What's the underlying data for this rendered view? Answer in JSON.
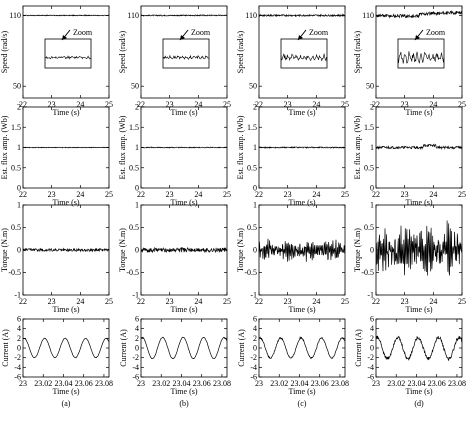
{
  "chart_data": {
    "type": "line",
    "panels": [
      {
        "id": "speed-a",
        "row": "speed",
        "col": "a",
        "ylabel": "Speed (rad/s)",
        "xlabel": "Time (s)",
        "xticks": [
          "22",
          "23",
          "24",
          "25"
        ],
        "yticks": [
          "110",
          "50"
        ],
        "xlim": [
          22,
          25
        ],
        "ylim": [
          40,
          118
        ],
        "level": 110,
        "noise": 0.35,
        "inset": {
          "label": "Zoom",
          "amp": 0.5,
          "noise": 1.0
        }
      },
      {
        "id": "speed-b",
        "row": "speed",
        "col": "b",
        "ylabel": "Speed (rad/s)",
        "xlabel": "Time (s)",
        "xticks": [
          "22",
          "23",
          "24",
          "25"
        ],
        "yticks": [
          "110",
          "50"
        ],
        "xlim": [
          22,
          25
        ],
        "ylim": [
          40,
          118
        ],
        "level": 110,
        "noise": 0.45,
        "inset": {
          "label": "Zoom",
          "amp": 0.7,
          "noise": 1.2
        }
      },
      {
        "id": "speed-c",
        "row": "speed",
        "col": "c",
        "ylabel": "Speed (rad/s)",
        "xlabel": "Time (s)",
        "xticks": [
          "22",
          "23",
          "24",
          "25"
        ],
        "yticks": [
          "110",
          "50"
        ],
        "xlim": [
          22,
          25
        ],
        "ylim": [
          40,
          118
        ],
        "level": 110,
        "noise": 0.7,
        "inset": {
          "label": "Zoom",
          "amp": 1.6,
          "noise": 2.2
        }
      },
      {
        "id": "speed-d",
        "row": "speed",
        "col": "d",
        "ylabel": "Speed (rad/s)",
        "xlabel": "Time (s)",
        "xticks": [
          "22",
          "23",
          "24",
          "25"
        ],
        "yticks": [
          "110",
          "50"
        ],
        "xlim": [
          22,
          25
        ],
        "ylim": [
          40,
          118
        ],
        "level": 110,
        "noise": 1.4,
        "inset": {
          "label": "Zoom",
          "amp": 2.8,
          "noise": 3.5
        }
      },
      {
        "id": "flux-a",
        "row": "flux",
        "col": "a",
        "ylabel": "Est. flux amp. (Wb)",
        "xlabel": "Time (s)",
        "xticks": [
          "22",
          "23",
          "24",
          "25"
        ],
        "yticks": [
          "0",
          "0.5",
          "1",
          "1.5",
          "2"
        ],
        "xlim": [
          22,
          25
        ],
        "ylim": [
          0,
          2
        ],
        "level": 1,
        "noise": 0.008
      },
      {
        "id": "flux-b",
        "row": "flux",
        "col": "b",
        "ylabel": "Est. flux amp. (Wb)",
        "xlabel": "Time (s)",
        "xticks": [
          "22",
          "23",
          "24",
          "25"
        ],
        "yticks": [
          "0",
          "0.5",
          "1",
          "1.5",
          "2"
        ],
        "xlim": [
          22,
          25
        ],
        "ylim": [
          0,
          2
        ],
        "level": 1,
        "noise": 0.01
      },
      {
        "id": "flux-c",
        "row": "flux",
        "col": "c",
        "ylabel": "Est. flux amp. (Wb)",
        "xlabel": "Time (s)",
        "xticks": [
          "22",
          "23",
          "24",
          "25"
        ],
        "yticks": [
          "0",
          "0.5",
          "1",
          "1.5",
          "2"
        ],
        "xlim": [
          22,
          25
        ],
        "ylim": [
          0,
          2
        ],
        "level": 1,
        "noise": 0.014
      },
      {
        "id": "flux-d",
        "row": "flux",
        "col": "d",
        "ylabel": "Est. flux amp. (Wb)",
        "xlabel": "Time (s)",
        "xticks": [
          "22",
          "23",
          "24",
          "25"
        ],
        "yticks": [
          "0",
          "0.5",
          "1",
          "1.5",
          "2"
        ],
        "xlim": [
          22,
          25
        ],
        "ylim": [
          0,
          2
        ],
        "level": 1,
        "noise": 0.03
      },
      {
        "id": "torque-a",
        "row": "torque",
        "col": "a",
        "ylabel": "Torque (N.m)",
        "xlabel": "Time (s)",
        "xticks": [
          "22",
          "23",
          "24",
          "25"
        ],
        "yticks": [
          "-1",
          "-0.5",
          "0",
          "0.5",
          "1"
        ],
        "xlim": [
          22,
          25
        ],
        "ylim": [
          -1,
          1
        ],
        "level": 0,
        "noise": 0.03
      },
      {
        "id": "torque-b",
        "row": "torque",
        "col": "b",
        "ylabel": "Torque (N.m)",
        "xlabel": "Time (s)",
        "xticks": [
          "22",
          "23",
          "24",
          "25"
        ],
        "yticks": [
          "-1",
          "-0.5",
          "0",
          "0.5",
          "1"
        ],
        "xlim": [
          22,
          25
        ],
        "ylim": [
          -1,
          1
        ],
        "level": 0,
        "noise": 0.05
      },
      {
        "id": "torque-c",
        "row": "torque",
        "col": "c",
        "ylabel": "Torque (N.m)",
        "xlabel": "Time (s)",
        "xticks": [
          "22",
          "23",
          "24",
          "25"
        ],
        "yticks": [
          "-1",
          "-0.5",
          "0",
          "0.5",
          "1"
        ],
        "xlim": [
          22,
          25
        ],
        "ylim": [
          -1,
          1
        ],
        "level": 0,
        "noise": 0.12
      },
      {
        "id": "torque-d",
        "row": "torque",
        "col": "d",
        "ylabel": "Torque (N.m)",
        "xlabel": "Time (s)",
        "xticks": [
          "22",
          "23",
          "24",
          "25"
        ],
        "yticks": [
          "-1",
          "-0.5",
          "0",
          "0.5",
          "1"
        ],
        "xlim": [
          22,
          25
        ],
        "ylim": [
          -1,
          1
        ],
        "level": 0,
        "noise": 0.28
      },
      {
        "id": "current-a",
        "row": "current",
        "col": "a",
        "ylabel": "Current (A)",
        "xlabel": "Time (s)",
        "xticks": [
          "23",
          "23.02",
          "23.04",
          "23.06",
          "23.08"
        ],
        "yticks": [
          "-6",
          "-4",
          "-2",
          "0",
          "2",
          "4",
          "6"
        ],
        "xlim": [
          23,
          23.085
        ],
        "ylim": [
          -6,
          6
        ],
        "level": 0,
        "amplitude": 2,
        "cycles": 4.2,
        "noise": 0.05
      },
      {
        "id": "current-b",
        "row": "current",
        "col": "b",
        "ylabel": "Current (A)",
        "xlabel": "Time (s)",
        "xticks": [
          "23",
          "23.02",
          "23.04",
          "23.06",
          "23.08"
        ],
        "yticks": [
          "-6",
          "-4",
          "-2",
          "0",
          "2",
          "4",
          "6"
        ],
        "xlim": [
          23,
          23.085
        ],
        "ylim": [
          -6,
          6
        ],
        "level": 0,
        "amplitude": 2.2,
        "cycles": 4.2,
        "noise": 0.07
      },
      {
        "id": "current-c",
        "row": "current",
        "col": "c",
        "ylabel": "Current (A)",
        "xlabel": "Time (s)",
        "xticks": [
          "23",
          "23.02",
          "23.04",
          "23.06",
          "23.08"
        ],
        "yticks": [
          "-6",
          "-4",
          "-2",
          "0",
          "2",
          "4",
          "6"
        ],
        "xlim": [
          23,
          23.085
        ],
        "ylim": [
          -6,
          6
        ],
        "level": 0,
        "amplitude": 2.1,
        "cycles": 4.2,
        "noise": 0.15
      },
      {
        "id": "current-d",
        "row": "current",
        "col": "d",
        "ylabel": "Current (A)",
        "xlabel": "Time (s)",
        "xticks": [
          "23",
          "23.02",
          "23.04",
          "23.06",
          "23.08"
        ],
        "yticks": [
          "-6",
          "-4",
          "-2",
          "0",
          "2",
          "4",
          "6"
        ],
        "xlim": [
          23,
          23.085
        ],
        "ylim": [
          -6,
          6
        ],
        "level": 0,
        "amplitude": 2.2,
        "cycles": 4.2,
        "noise": 0.35
      }
    ],
    "captions": [
      "(a)",
      "(b)",
      "(c)",
      "(d)"
    ]
  },
  "style": {
    "line_color": "#000000",
    "background": "#ffffff"
  }
}
